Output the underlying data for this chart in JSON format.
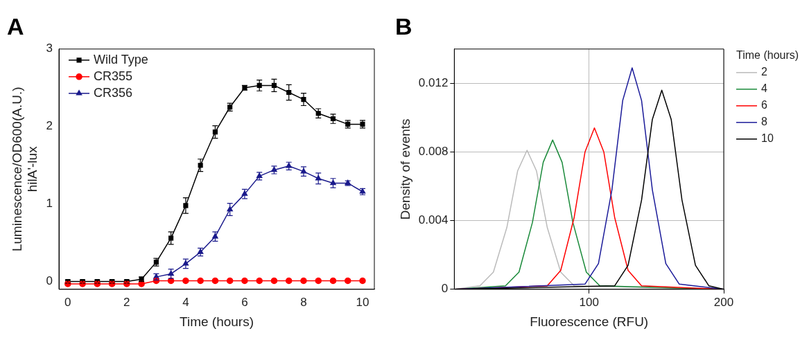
{
  "chart_data": [
    {
      "type": "line",
      "title": "A",
      "xlabel": "Time (hours)",
      "ylabel": "Luminescence/OD600(A.U.)\nhilA'-lux",
      "x": [
        0,
        0.5,
        1,
        1.5,
        2,
        2.5,
        3,
        3.5,
        4,
        4.5,
        5,
        5.5,
        6,
        6.5,
        7,
        7.5,
        8,
        8.5,
        9,
        9.5,
        10
      ],
      "xlim": [
        -0.3,
        10.4
      ],
      "xticks": [
        0,
        2,
        4,
        6,
        8,
        10
      ],
      "ylim": [
        -0.1,
        3
      ],
      "yticks": [
        0,
        1,
        2,
        3
      ],
      "grid": false,
      "legend": "top left",
      "series": [
        {
          "name": "Wild Type",
          "color": "#000000",
          "marker": "square",
          "values": [
            0,
            0,
            0,
            0,
            0,
            0.03,
            0.25,
            0.56,
            0.98,
            1.5,
            1.93,
            2.25,
            2.5,
            2.53,
            2.53,
            2.44,
            2.35,
            2.17,
            2.1,
            2.03,
            2.03
          ],
          "errors": [
            0.02,
            0.02,
            0.02,
            0.02,
            0.02,
            0.03,
            0.05,
            0.08,
            0.1,
            0.08,
            0.08,
            0.05,
            0.03,
            0.07,
            0.08,
            0.1,
            0.08,
            0.06,
            0.06,
            0.05,
            0.05
          ]
        },
        {
          "name": "CR355",
          "color": "#ff0000",
          "marker": "circle",
          "values": [
            -0.03,
            -0.03,
            -0.03,
            -0.03,
            -0.03,
            -0.03,
            0.01,
            0.01,
            0.01,
            0.01,
            0.01,
            0.01,
            0.01,
            0.01,
            0.01,
            0.01,
            0.01,
            0.01,
            0.01,
            0.01,
            0.01
          ],
          "errors": [
            0.02,
            0.02,
            0.02,
            0.02,
            0.02,
            0.02,
            0.02,
            0.02,
            0.02,
            0.02,
            0.02,
            0.02,
            0.02,
            0.02,
            0.02,
            0.02,
            0.02,
            0.02,
            0.02,
            0.02,
            0.02
          ]
        },
        {
          "name": "CR356",
          "color": "#1a1a8c",
          "marker": "triangle",
          "values": [
            null,
            null,
            null,
            null,
            null,
            null,
            0.06,
            0.1,
            0.23,
            0.38,
            0.58,
            0.93,
            1.13,
            1.36,
            1.44,
            1.49,
            1.42,
            1.33,
            1.27,
            1.27,
            1.16
          ],
          "errors": [
            null,
            null,
            null,
            null,
            null,
            null,
            0.04,
            0.06,
            0.06,
            0.05,
            0.06,
            0.08,
            0.06,
            0.05,
            0.05,
            0.05,
            0.06,
            0.07,
            0.06,
            0.03,
            0.04
          ]
        }
      ]
    },
    {
      "type": "line",
      "title": "B",
      "xlabel": "Fluorescence (RFU)",
      "ylabel": "Density of events",
      "legend_title": "Time (hours)",
      "xlim": [
        0,
        200
      ],
      "xticks": [
        100,
        200
      ],
      "ylim": [
        0,
        0.014
      ],
      "yticks": [
        0,
        0.004,
        0.008,
        0.012
      ],
      "grid": true,
      "legend": "right",
      "marker": "none",
      "series": [
        {
          "name": "2",
          "color": "#bbbbbb",
          "x": [
            0,
            19,
            29,
            39,
            47,
            54,
            61,
            69,
            79,
            89,
            200
          ],
          "values": [
            0,
            0.0002,
            0.001,
            0.0036,
            0.0069,
            0.0081,
            0.0069,
            0.0036,
            0.001,
            0.0002,
            0
          ]
        },
        {
          "name": "4",
          "color": "#1a8a3a",
          "x": [
            0,
            38,
            48,
            58,
            66,
            73,
            80,
            88,
            98,
            108,
            200
          ],
          "values": [
            0,
            0.0002,
            0.001,
            0.0039,
            0.0074,
            0.0087,
            0.0074,
            0.0039,
            0.001,
            0.0002,
            0
          ]
        },
        {
          "name": "6",
          "color": "#ff0000",
          "x": [
            0,
            69,
            79,
            89,
            97,
            104,
            111,
            119,
            129,
            139,
            200
          ],
          "values": [
            0,
            0.0002,
            0.0011,
            0.0042,
            0.008,
            0.0094,
            0.008,
            0.0042,
            0.0011,
            0.0002,
            0
          ]
        },
        {
          "name": "8",
          "color": "#1a1a99",
          "x": [
            0,
            97,
            107,
            117,
            125,
            132,
            139,
            147,
            157,
            167,
            200
          ],
          "values": [
            0,
            0.0003,
            0.0015,
            0.0058,
            0.011,
            0.0129,
            0.011,
            0.0058,
            0.0015,
            0.0003,
            0
          ]
        },
        {
          "name": "10",
          "color": "#000000",
          "x": [
            0,
            119,
            129,
            139,
            147,
            154,
            161,
            169,
            179,
            189,
            200
          ],
          "values": [
            0,
            0.0002,
            0.0014,
            0.0052,
            0.0099,
            0.0116,
            0.0099,
            0.0052,
            0.0014,
            0.0002,
            0
          ]
        }
      ]
    }
  ]
}
